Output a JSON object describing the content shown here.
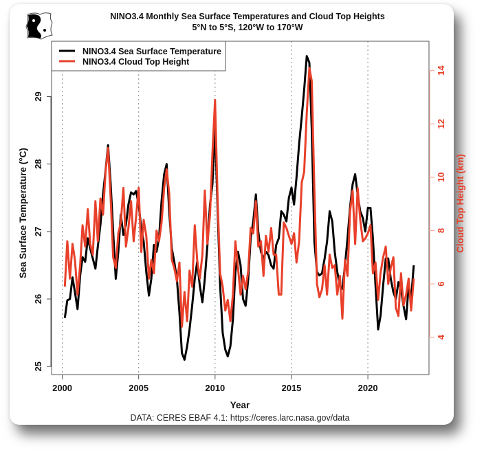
{
  "chart_data": {
    "type": "line",
    "title": "NINO3.4 Monthly Sea Surface Temperatures and Cloud Top Heights",
    "subtitle": "5°N to 5°S, 120°W to 170°W",
    "xlabel": "Year",
    "ylabel": "Sea Surface Temperature (°C)",
    "ylabel_right": "Cloud Top Height (km)",
    "credit": "DATA: CERES EBAF 4.1: https://ceres.larc.nasa.gov/data",
    "xlim": [
      1999.3,
      2024.0
    ],
    "ylim": [
      24.88,
      29.82
    ],
    "ylim_right": [
      2.6,
      15.1
    ],
    "x_ticks": [
      2000,
      2005,
      2010,
      2015,
      2020
    ],
    "x_tick_labels": [
      "2000",
      "2005",
      "2010",
      "2015",
      "2020"
    ],
    "y_ticks": [
      25,
      26,
      27,
      28,
      29
    ],
    "y_tick_labels": [
      "25",
      "26",
      "27",
      "28",
      "29"
    ],
    "y_ticks_right": [
      4,
      6,
      8,
      10,
      12,
      14
    ],
    "y_tick_labels_right": [
      "4",
      "6",
      "8",
      "10",
      "12",
      "14"
    ],
    "grid": "vertical dotted at x ticks",
    "legend_position": "top-left",
    "colors": {
      "sst": "#000000",
      "cth": "#e8402a"
    },
    "series": [
      {
        "name": "NINO3.4 Sea Surface Temperature",
        "axis": "left",
        "x": [
          2000.17,
          2000.33,
          2000.5,
          2000.67,
          2000.83,
          2001.0,
          2001.17,
          2001.33,
          2001.5,
          2001.67,
          2001.83,
          2002.0,
          2002.17,
          2002.33,
          2002.5,
          2002.67,
          2002.83,
          2003.0,
          2003.17,
          2003.33,
          2003.5,
          2003.67,
          2003.83,
          2004.0,
          2004.17,
          2004.33,
          2004.5,
          2004.67,
          2004.83,
          2005.0,
          2005.17,
          2005.33,
          2005.5,
          2005.67,
          2005.83,
          2006.0,
          2006.17,
          2006.33,
          2006.5,
          2006.67,
          2006.83,
          2007.0,
          2007.17,
          2007.33,
          2007.5,
          2007.67,
          2007.83,
          2008.0,
          2008.17,
          2008.33,
          2008.5,
          2008.67,
          2008.83,
          2009.0,
          2009.17,
          2009.33,
          2009.5,
          2009.67,
          2009.83,
          2010.0,
          2010.17,
          2010.33,
          2010.5,
          2010.67,
          2010.83,
          2011.0,
          2011.17,
          2011.33,
          2011.5,
          2011.67,
          2011.83,
          2012.0,
          2012.17,
          2012.33,
          2012.5,
          2012.67,
          2012.83,
          2013.0,
          2013.17,
          2013.33,
          2013.5,
          2013.67,
          2013.83,
          2014.0,
          2014.17,
          2014.33,
          2014.5,
          2014.67,
          2014.83,
          2015.0,
          2015.17,
          2015.33,
          2015.5,
          2015.67,
          2015.83,
          2016.0,
          2016.17,
          2016.33,
          2016.5,
          2016.67,
          2016.83,
          2017.0,
          2017.17,
          2017.33,
          2017.5,
          2017.67,
          2017.83,
          2018.0,
          2018.17,
          2018.33,
          2018.5,
          2018.67,
          2018.83,
          2019.0,
          2019.17,
          2019.33,
          2019.5,
          2019.67,
          2019.83,
          2020.0,
          2020.17,
          2020.33,
          2020.5,
          2020.67,
          2020.83,
          2021.0,
          2021.17,
          2021.33,
          2021.5,
          2021.67,
          2021.83,
          2022.0,
          2022.17,
          2022.33,
          2022.5,
          2022.67,
          2022.83,
          2023.0
        ],
        "values": [
          25.72,
          25.98,
          26.0,
          26.32,
          26.1,
          25.85,
          26.35,
          26.62,
          26.55,
          26.9,
          26.75,
          26.6,
          26.45,
          26.78,
          27.1,
          27.55,
          27.9,
          28.28,
          27.7,
          27.0,
          26.3,
          26.7,
          27.25,
          26.95,
          27.1,
          27.4,
          27.58,
          27.55,
          27.6,
          27.4,
          27.05,
          26.85,
          26.4,
          26.05,
          26.3,
          26.8,
          26.7,
          26.9,
          27.45,
          27.85,
          28.0,
          27.3,
          26.75,
          26.55,
          26.3,
          25.8,
          25.2,
          25.1,
          25.3,
          25.55,
          25.9,
          26.3,
          26.55,
          26.2,
          25.95,
          26.3,
          26.8,
          27.4,
          27.7,
          28.55,
          27.3,
          26.2,
          25.5,
          25.25,
          25.15,
          25.3,
          25.7,
          26.4,
          26.7,
          26.5,
          26.0,
          25.9,
          26.3,
          26.9,
          27.15,
          27.55,
          27.0,
          26.7,
          26.6,
          26.7,
          26.65,
          26.5,
          26.45,
          26.8,
          26.9,
          27.3,
          27.25,
          27.15,
          27.5,
          27.65,
          27.4,
          27.8,
          28.3,
          28.7,
          29.1,
          29.6,
          29.5,
          28.5,
          26.85,
          26.4,
          26.35,
          26.38,
          26.6,
          26.85,
          27.3,
          27.15,
          26.7,
          26.4,
          26.2,
          26.15,
          26.5,
          26.9,
          27.35,
          27.7,
          27.85,
          27.55,
          27.3,
          27.2,
          27.0,
          27.35,
          27.35,
          26.9,
          26.2,
          25.55,
          25.75,
          26.2,
          26.6,
          26.6,
          26.3,
          26.1,
          26.0,
          26.25,
          26.15,
          25.9,
          25.7,
          26.2,
          26.0,
          26.5
        ]
      },
      {
        "name": "NINO3.4 Cloud Top Height",
        "axis": "right",
        "x": [
          2000.17,
          2000.33,
          2000.5,
          2000.67,
          2000.83,
          2001.0,
          2001.17,
          2001.33,
          2001.5,
          2001.67,
          2001.83,
          2002.0,
          2002.17,
          2002.33,
          2002.5,
          2002.67,
          2002.83,
          2003.0,
          2003.17,
          2003.33,
          2003.5,
          2003.67,
          2003.83,
          2004.0,
          2004.17,
          2004.33,
          2004.5,
          2004.67,
          2004.83,
          2005.0,
          2005.17,
          2005.33,
          2005.5,
          2005.67,
          2005.83,
          2006.0,
          2006.17,
          2006.33,
          2006.5,
          2006.67,
          2006.83,
          2007.0,
          2007.17,
          2007.33,
          2007.5,
          2007.67,
          2007.83,
          2008.0,
          2008.17,
          2008.33,
          2008.5,
          2008.67,
          2008.83,
          2009.0,
          2009.17,
          2009.33,
          2009.5,
          2009.67,
          2009.83,
          2010.0,
          2010.17,
          2010.33,
          2010.5,
          2010.67,
          2010.83,
          2011.0,
          2011.17,
          2011.33,
          2011.5,
          2011.67,
          2011.83,
          2012.0,
          2012.17,
          2012.33,
          2012.5,
          2012.67,
          2012.83,
          2013.0,
          2013.17,
          2013.33,
          2013.5,
          2013.67,
          2013.83,
          2014.0,
          2014.17,
          2014.33,
          2014.5,
          2014.67,
          2014.83,
          2015.0,
          2015.17,
          2015.33,
          2015.5,
          2015.67,
          2015.83,
          2016.0,
          2016.17,
          2016.33,
          2016.5,
          2016.67,
          2016.83,
          2017.0,
          2017.17,
          2017.33,
          2017.5,
          2017.67,
          2017.83,
          2018.0,
          2018.17,
          2018.33,
          2018.5,
          2018.67,
          2018.83,
          2019.0,
          2019.17,
          2019.33,
          2019.5,
          2019.67,
          2019.83,
          2020.0,
          2020.17,
          2020.33,
          2020.5,
          2020.67,
          2020.83,
          2021.0,
          2021.17,
          2021.33,
          2021.5,
          2021.67,
          2021.83,
          2022.0,
          2022.17,
          2022.33,
          2022.5,
          2022.67,
          2022.83,
          2023.0
        ],
        "values": [
          5.9,
          7.6,
          6.2,
          7.5,
          6.9,
          5.6,
          6.7,
          8.2,
          7.4,
          8.8,
          7.5,
          7.1,
          9.1,
          7.6,
          9.2,
          8.6,
          10.2,
          11.1,
          9.2,
          7.0,
          6.6,
          7.9,
          8.3,
          9.6,
          7.4,
          8.1,
          9.1,
          7.6,
          8.5,
          9.6,
          7.2,
          8.4,
          7.8,
          6.2,
          6.9,
          6.4,
          8.0,
          7.6,
          8.3,
          9.6,
          10.3,
          9.4,
          6.9,
          6.6,
          6.1,
          6.8,
          4.4,
          5.7,
          4.6,
          6.5,
          5.9,
          8.2,
          6.9,
          6.2,
          7.1,
          9.5,
          7.5,
          8.6,
          10.9,
          12.9,
          9.1,
          6.4,
          5.9,
          5.0,
          5.4,
          4.6,
          5.6,
          7.6,
          6.6,
          5.6,
          6.3,
          5.8,
          6.5,
          8.1,
          7.9,
          9.1,
          7.4,
          7.6,
          6.3,
          7.8,
          7.2,
          8.1,
          7.1,
          7.1,
          5.6,
          5.6,
          8.3,
          8.1,
          7.8,
          7.5,
          7.9,
          6.8,
          7.6,
          9.8,
          10.2,
          12.4,
          14.1,
          13.6,
          9.5,
          6.0,
          5.5,
          5.8,
          6.7,
          5.6,
          7.1,
          6.6,
          6.7,
          5.6,
          6.3,
          4.7,
          6.9,
          6.3,
          8.7,
          9.5,
          7.5,
          9.6,
          8.4,
          7.6,
          7.7,
          7.9,
          8.2,
          6.4,
          6.8,
          5.4,
          6.4,
          7.0,
          7.4,
          6.0,
          6.6,
          7.0,
          5.1,
          4.8,
          6.4,
          5.2,
          5.6,
          6.2,
          5.0,
          6.2
        ]
      }
    ]
  },
  "legend": {
    "items": [
      "NINO3.4 Sea Surface Temperature",
      "NINO3.4 Cloud Top Height"
    ]
  },
  "logo": {
    "icon": "yin-yang-fish-logo"
  }
}
